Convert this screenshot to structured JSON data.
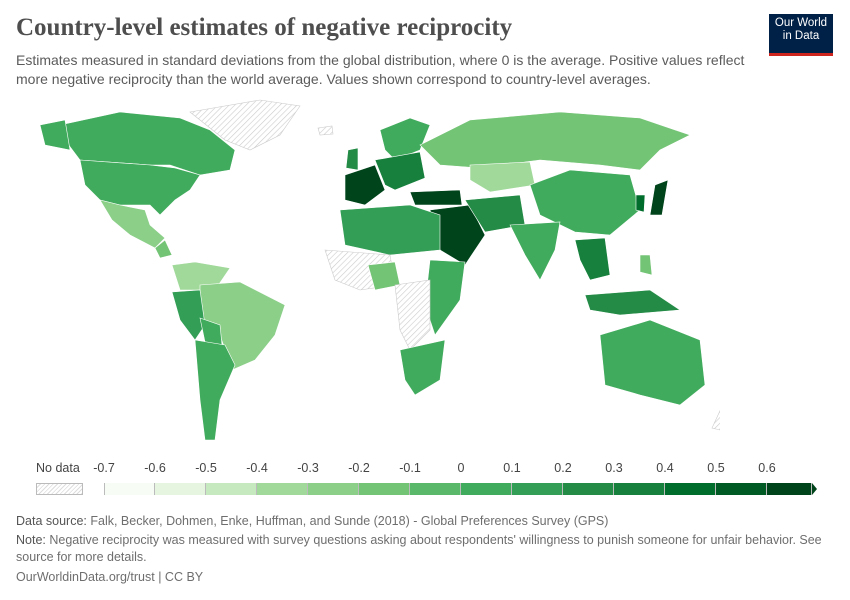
{
  "header": {
    "title": "Country-level estimates of negative reciprocity",
    "subtitle": "Estimates measured in standard deviations from the global distribution, where 0 is the average. Positive values reflect more negative reciprocity than the world average. Values shown correspond to country-level averages.",
    "logo": "Our World in Data"
  },
  "legend": {
    "no_data_label": "No data",
    "ticks": [
      "-0.7",
      "-0.6",
      "-0.5",
      "-0.4",
      "-0.3",
      "-0.2",
      "-0.1",
      "0",
      "0.1",
      "0.2",
      "0.3",
      "0.4",
      "0.5",
      "0.6"
    ],
    "colors": [
      "#f7fcf5",
      "#e5f5e0",
      "#c7e9c0",
      "#a1d99b",
      "#8bcf89",
      "#74c476",
      "#5ab86a",
      "#41ab5d",
      "#339e55",
      "#238b45",
      "#16803c",
      "#006d2c",
      "#005a24",
      "#00441b"
    ],
    "no_data_color": "#e0e0e0"
  },
  "footer": {
    "source_label": "Data source:",
    "source": "Falk, Becker, Dohmen, Enke, Huffman, and Sunde (2018) - Global Preferences Survey (GPS)",
    "note_label": "Note:",
    "note": "Negative reciprocity was measured with survey questions asking about respondents' willingness to punish someone for unfair behavior. See source for more details.",
    "link": "OurWorldinData.org/trust",
    "license": "CC BY"
  }
}
